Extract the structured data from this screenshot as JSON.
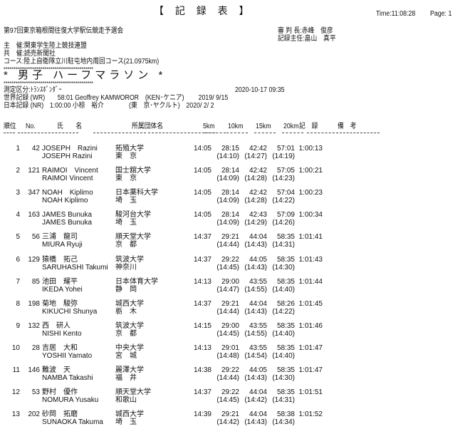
{
  "header": {
    "title": "【 記 録 表 】",
    "time": "Time:11:08:28",
    "page": "Page: 1",
    "event": "第97回東京箱根間往復大学駅伝競走予選会",
    "referee": "審 判 長:赤峰　俊彦",
    "recorder": "記録主任:畠山　真平",
    "organizer": "主　催:関東学生陸上競技連盟",
    "cosponsor": "共　催:読売新聞社",
    "course": "コース:陸上自衛隊立川駐屯地内周回コース(21.0975km)",
    "stars": "**********************************************",
    "race": "* 男子 ハーフマラソン *",
    "timing": "測定区分:ﾄﾗﾝｽﾎﾟﾝﾀﾞｰ",
    "datetime": "2020-10-17 09:35",
    "world_record": "世界記録 (WR)　　58:01 Geoffrey KAMWOROR　(KEN･ケニア)　　 2019/ 9/15",
    "japan_record": "日本記録 (NR)　1:00:00 小椋　裕介　　　　(東　京･ヤクルト)　2020/ 2/ 2"
  },
  "columns": {
    "rank": "順位",
    "no": "No.",
    "name": "氏　　名",
    "team": "所属団体名",
    "k5": "5km",
    "k10": "10km",
    "k15": "15km",
    "k20": "20km",
    "record": "記　録",
    "remarks": "備　考"
  },
  "rows": [
    {
      "rank": "1",
      "no": "42",
      "name": "JOSEPH　Razini",
      "name2": "JOSEPH Razini",
      "team": "拓殖大学",
      "pref": "東　京",
      "k5": "14:05",
      "k10": "28:15",
      "k15": "42:42",
      "k20": "57:01",
      "record": "1:00:13",
      "s10": "(14:10)",
      "s15": "(14:27)",
      "s20": "(14:19)"
    },
    {
      "rank": "2",
      "no": "121",
      "name": "RAIMOI　Vincent",
      "name2": "RAIMOI Vincent",
      "team": "国士舘大学",
      "pref": "東　京",
      "k5": "14:05",
      "k10": "28:14",
      "k15": "42:42",
      "k20": "57:05",
      "record": "1:00:21",
      "s10": "(14:09)",
      "s15": "(14:28)",
      "s20": "(14:23)"
    },
    {
      "rank": "3",
      "no": "347",
      "name": "NOAH　Kiplimo",
      "name2": "NOAH Kiplimo",
      "team": "日本薬科大学",
      "pref": "埼　玉",
      "k5": "14:05",
      "k10": "28:14",
      "k15": "42:42",
      "k20": "57:04",
      "record": "1:00:23",
      "s10": "(14:09)",
      "s15": "(14:28)",
      "s20": "(14:22)"
    },
    {
      "rank": "4",
      "no": "163",
      "name": "JAMES Bunuka",
      "name2": "JAMES Bunuka",
      "team": "駿河台大学",
      "pref": "埼　玉",
      "k5": "14:05",
      "k10": "28:14",
      "k15": "42:43",
      "k20": "57:09",
      "record": "1:00:34",
      "s10": "(14:09)",
      "s15": "(14:29)",
      "s20": "(14:26)"
    },
    {
      "rank": "5",
      "no": "56",
      "name": "三浦　龍司",
      "name2": "MIURA Ryuji",
      "team": "順天堂大学",
      "pref": "京　都",
      "k5": "14:37",
      "k10": "29:21",
      "k15": "44:04",
      "k20": "58:35",
      "record": "1:01:41",
      "s10": "(14:44)",
      "s15": "(14:43)",
      "s20": "(14:31)"
    },
    {
      "rank": "6",
      "no": "129",
      "name": "猿橋　拓己",
      "name2": "SARUHASHI Takumi",
      "team": "筑波大学",
      "pref": "神奈川",
      "k5": "14:37",
      "k10": "29:22",
      "k15": "44:05",
      "k20": "58:35",
      "record": "1:01:43",
      "s10": "(14:45)",
      "s15": "(14:43)",
      "s20": "(14:30)"
    },
    {
      "rank": "7",
      "no": "85",
      "name": "池田　耀平",
      "name2": "IKEDA Yohei",
      "team": "日本体育大学",
      "pref": "静　岡",
      "k5": "14:13",
      "k10": "29:00",
      "k15": "43:55",
      "k20": "58:35",
      "record": "1:01:44",
      "s10": "(14:47)",
      "s15": "(14:55)",
      "s20": "(14:40)"
    },
    {
      "rank": "8",
      "no": "198",
      "name": "菊地　駿弥",
      "name2": "KIKUCHI Shunya",
      "team": "城西大学",
      "pref": "栃　木",
      "k5": "14:37",
      "k10": "29:21",
      "k15": "44:04",
      "k20": "58:26",
      "record": "1:01:45",
      "s10": "(14:44)",
      "s15": "(14:43)",
      "s20": "(14:22)"
    },
    {
      "rank": "9",
      "no": "132",
      "name": "西　研人",
      "name2": "NISHI Kento",
      "team": "筑波大学",
      "pref": "京　都",
      "k5": "14:15",
      "k10": "29:00",
      "k15": "43:55",
      "k20": "58:35",
      "record": "1:01:46",
      "s10": "(14:45)",
      "s15": "(14:55)",
      "s20": "(14:40)"
    },
    {
      "rank": "10",
      "no": "28",
      "name": "吉居　大和",
      "name2": "YOSHII Yamato",
      "team": "中央大学",
      "pref": "宮　城",
      "k5": "14:13",
      "k10": "29:01",
      "k15": "43:55",
      "k20": "58:35",
      "record": "1:01:47",
      "s10": "(14:48)",
      "s15": "(14:54)",
      "s20": "(14:40)"
    },
    {
      "rank": "11",
      "no": "146",
      "name": "難波　天",
      "name2": "NAMBA Takashi",
      "team": "麗澤大学",
      "pref": "福　井",
      "k5": "14:38",
      "k10": "29:22",
      "k15": "44:05",
      "k20": "58:35",
      "record": "1:01:47",
      "s10": "(14:44)",
      "s15": "(14:43)",
      "s20": "(14:30)"
    },
    {
      "rank": "12",
      "no": "53",
      "name": "野村　優作",
      "name2": "NOMURA Yusaku",
      "team": "順天堂大学",
      "pref": "和歌山",
      "k5": "14:37",
      "k10": "29:22",
      "k15": "44:04",
      "k20": "58:35",
      "record": "1:01:51",
      "s10": "(14:45)",
      "s15": "(14:42)",
      "s20": "(14:31)"
    },
    {
      "rank": "13",
      "no": "202",
      "name": "砂岡　拓磨",
      "name2": "SUNAOKA Takuma",
      "team": "城西大学",
      "pref": "埼　玉",
      "k5": "14:39",
      "k10": "29:21",
      "k15": "44:04",
      "k20": "58:38",
      "record": "1:01:52",
      "s10": "(14:42)",
      "s15": "(14:43)",
      "s20": "(14:34)"
    }
  ]
}
